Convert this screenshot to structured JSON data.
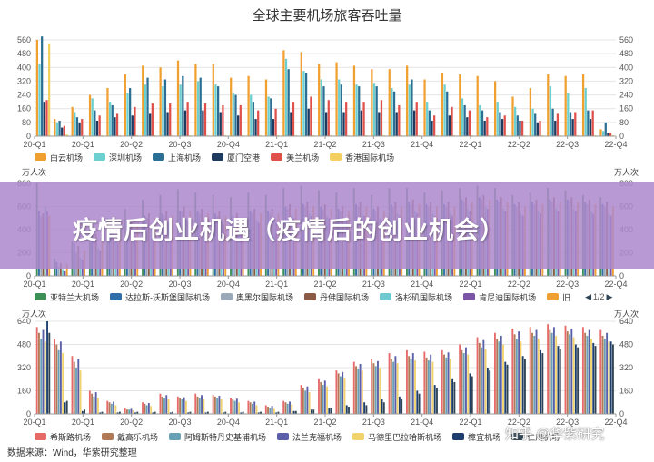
{
  "title": "全球主要机场旅客吞吐量",
  "banner": "疫情后创业机遇（疫情后的创业机会）",
  "source": "数据来源：Wind，华紫研究整理",
  "watermark": "知乎 @华紫研究",
  "pager": {
    "prev": "◀",
    "text": "1/2",
    "next": "▶"
  },
  "quarters": [
    "20-Q1",
    "20-Q2",
    "20-Q3",
    "20-Q4",
    "21-Q1",
    "21-Q2",
    "21-Q3",
    "21-Q4",
    "22-Q1",
    "22-Q2",
    "22-Q3",
    "22-Q4"
  ],
  "chart_data": [
    {
      "type": "bar",
      "name": "panel-1",
      "ylim": [
        0,
        560
      ],
      "yticks": [
        0,
        80,
        160,
        240,
        320,
        400,
        480,
        560
      ],
      "xticks": [
        "20-Q1",
        "20-Q1",
        "20-Q2",
        "20-Q3",
        "20-Q4",
        "21-Q1",
        "21-Q2",
        "21-Q3",
        "21-Q4",
        "22-Q1",
        "22-Q2",
        "22-Q3",
        "22-Q4"
      ],
      "groups": 33,
      "series": [
        {
          "name": "白云机场",
          "color": "#f0a030",
          "values": [
            560,
            100,
            170,
            240,
            280,
            360,
            410,
            400,
            440,
            420,
            420,
            340,
            350,
            330,
            500,
            490,
            420,
            430,
            410,
            390,
            390,
            410,
            330,
            370,
            360,
            350,
            320,
            230,
            280,
            360,
            350,
            360,
            40
          ]
        },
        {
          "name": "深圳机场",
          "color": "#6ccfd0",
          "values": [
            420,
            80,
            140,
            220,
            200,
            250,
            300,
            290,
            300,
            320,
            300,
            250,
            240,
            230,
            450,
            380,
            330,
            330,
            300,
            310,
            280,
            300,
            200,
            300,
            220,
            180,
            200,
            170,
            160,
            290,
            250,
            280,
            30
          ]
        },
        {
          "name": "上海机场",
          "color": "#2b6f94",
          "values": [
            580,
            90,
            110,
            150,
            180,
            280,
            340,
            330,
            350,
            340,
            290,
            240,
            200,
            220,
            390,
            370,
            290,
            300,
            290,
            290,
            260,
            330,
            150,
            260,
            180,
            150,
            140,
            120,
            130,
            160,
            140,
            150,
            80
          ]
        },
        {
          "name": "厦门空港",
          "color": "#1f3a5f",
          "values": [
            200,
            50,
            80,
            90,
            110,
            120,
            130,
            140,
            150,
            150,
            140,
            120,
            100,
            100,
            140,
            160,
            140,
            140,
            150,
            140,
            140,
            150,
            90,
            120,
            110,
            90,
            100,
            90,
            80,
            90,
            100,
            100,
            20
          ]
        },
        {
          "name": "美兰机场",
          "color": "#e0504a",
          "values": [
            210,
            60,
            100,
            120,
            130,
            170,
            190,
            190,
            200,
            190,
            180,
            180,
            150,
            160,
            200,
            230,
            210,
            200,
            200,
            210,
            180,
            200,
            120,
            170,
            150,
            110,
            120,
            90,
            90,
            130,
            140,
            150,
            20
          ]
        },
        {
          "name": "香港国际机场",
          "color": "#f2cf5e",
          "values": [
            540,
            10,
            5,
            5,
            5,
            5,
            5,
            5,
            5,
            5,
            5,
            5,
            5,
            5,
            5,
            5,
            5,
            5,
            5,
            5,
            5,
            5,
            5,
            5,
            5,
            5,
            5,
            5,
            5,
            5,
            5,
            5,
            5
          ]
        }
      ]
    },
    {
      "type": "bar",
      "name": "panel-2",
      "ylim": [
        0,
        800
      ],
      "yticks": [
        0,
        200,
        400,
        600,
        800
      ],
      "xticks": [
        "20-Q1",
        "20-Q1",
        "20-Q2",
        "20-Q3",
        "20-Q4",
        "21-Q1",
        "21-Q2",
        "21-Q3",
        "21-Q4",
        "22-Q1",
        "22-Q2",
        "22-Q3",
        "22-Q4"
      ],
      "unit": "万人次",
      "groups": 33,
      "series": [
        {
          "name": "亚特兰大机场",
          "color": "#3c8f56",
          "values": [
            800,
            150,
            300,
            420,
            500,
            580,
            660,
            700,
            750,
            720,
            700,
            680,
            720,
            700,
            760,
            780,
            740,
            720,
            760,
            700,
            760,
            760,
            720,
            740,
            760,
            780,
            760,
            700,
            720,
            760,
            740,
            700,
            680
          ]
        },
        {
          "name": "达拉斯-沃斯堡国际机场",
          "color": "#2f6ea8",
          "values": [
            560,
            120,
            280,
            380,
            420,
            480,
            520,
            540,
            560,
            560,
            540,
            520,
            560,
            560,
            600,
            620,
            600,
            580,
            620,
            580,
            620,
            640,
            620,
            620,
            660,
            680,
            660,
            620,
            640,
            660,
            660,
            640,
            620
          ]
        },
        {
          "name": "奥黑尔国际机场",
          "color": "#9aa8b8",
          "values": [
            520,
            80,
            200,
            300,
            360,
            420,
            500,
            520,
            560,
            540,
            520,
            500,
            540,
            540,
            580,
            600,
            580,
            560,
            600,
            560,
            600,
            620,
            600,
            600,
            640,
            660,
            640,
            600,
            620,
            640,
            640,
            620,
            600
          ]
        },
        {
          "name": "丹佛国际机场",
          "color": "#8a5a44",
          "values": [
            540,
            110,
            260,
            360,
            420,
            480,
            540,
            560,
            600,
            580,
            560,
            540,
            580,
            580,
            620,
            640,
            620,
            600,
            640,
            600,
            640,
            660,
            640,
            640,
            680,
            700,
            680,
            640,
            660,
            680,
            680,
            660,
            640
          ]
        },
        {
          "name": "洛杉矶国际机场",
          "color": "#6fcad0",
          "values": [
            600,
            60,
            160,
            240,
            300,
            360,
            420,
            460,
            500,
            480,
            460,
            440,
            480,
            480,
            520,
            540,
            520,
            500,
            540,
            500,
            540,
            560,
            540,
            540,
            580,
            600,
            580,
            540,
            560,
            580,
            580,
            560,
            540
          ]
        },
        {
          "name": "肯尼迪国际机场",
          "color": "#7b55a6",
          "values": [
            560,
            40,
            140,
            220,
            280,
            340,
            400,
            440,
            480,
            460,
            440,
            420,
            460,
            460,
            500,
            520,
            500,
            480,
            520,
            480,
            520,
            540,
            520,
            520,
            560,
            580,
            560,
            520,
            540,
            560,
            560,
            540,
            520
          ]
        },
        {
          "name": "旧",
          "color": "#f0a030",
          "values": [
            520,
            100,
            220,
            320,
            380,
            440,
            500,
            520,
            560,
            540,
            520,
            500,
            540,
            540,
            580,
            600,
            580,
            560,
            600,
            560,
            600,
            620,
            600,
            600,
            640,
            660,
            640,
            600,
            620,
            640,
            640,
            620,
            600
          ]
        }
      ]
    },
    {
      "type": "bar",
      "name": "panel-3",
      "ylim": [
        0,
        640
      ],
      "yticks": [
        0,
        160,
        320,
        480,
        640
      ],
      "xticks": [
        "20-Q1",
        "20-Q1",
        "20-Q2",
        "20-Q3",
        "20-Q4",
        "21-Q1",
        "21-Q2",
        "21-Q3",
        "21-Q4",
        "22-Q1",
        "22-Q2",
        "22-Q3",
        "22-Q4"
      ],
      "unit": "万人次",
      "groups": 33,
      "series": [
        {
          "name": "希斯路机场",
          "color": "#e66a6a",
          "values": [
            600,
            520,
            400,
            160,
            90,
            40,
            80,
            140,
            120,
            140,
            130,
            110,
            90,
            60,
            90,
            200,
            240,
            300,
            360,
            380,
            420,
            440,
            430,
            440,
            480,
            530,
            560,
            590,
            600,
            620,
            610,
            600,
            580
          ]
        },
        {
          "name": "戴高乐机场",
          "color": "#b07a58",
          "values": [
            560,
            480,
            360,
            140,
            80,
            30,
            70,
            120,
            110,
            120,
            120,
            100,
            80,
            50,
            80,
            180,
            220,
            280,
            330,
            350,
            380,
            400,
            390,
            410,
            440,
            490,
            520,
            550,
            560,
            580,
            570,
            560,
            540
          ]
        },
        {
          "name": "阿姆斯特丹史基浦机场",
          "color": "#6aa0b6",
          "values": [
            520,
            440,
            320,
            120,
            70,
            30,
            60,
            110,
            100,
            110,
            110,
            90,
            70,
            40,
            70,
            160,
            200,
            260,
            310,
            330,
            360,
            380,
            370,
            390,
            420,
            460,
            500,
            520,
            540,
            560,
            550,
            540,
            520
          ]
        },
        {
          "name": "法兰克福机场",
          "color": "#5a5fa8",
          "values": [
            580,
            500,
            380,
            150,
            85,
            35,
            75,
            130,
            115,
            130,
            125,
            105,
            85,
            55,
            85,
            190,
            230,
            290,
            345,
            365,
            400,
            420,
            410,
            425,
            460,
            510,
            540,
            570,
            580,
            600,
            590,
            580,
            560
          ]
        },
        {
          "name": "马德里巴拉哈斯机场",
          "color": "#f1d36e",
          "values": [
            500,
            420,
            300,
            110,
            60,
            25,
            55,
            100,
            90,
            100,
            100,
            80,
            60,
            35,
            65,
            150,
            190,
            250,
            300,
            320,
            350,
            370,
            360,
            380,
            410,
            450,
            480,
            500,
            520,
            540,
            530,
            520,
            500
          ]
        },
        {
          "name": "樟宜机场",
          "color": "#1e3f6e",
          "values": [
            640,
            80,
            20,
            10,
            10,
            10,
            10,
            10,
            10,
            10,
            10,
            10,
            10,
            10,
            20,
            30,
            40,
            60,
            80,
            100,
            120,
            160,
            200,
            240,
            280,
            320,
            360,
            400,
            440,
            470,
            480,
            490,
            500
          ]
        },
        {
          "name": "仁川机场",
          "color": "#2f4554",
          "values": [
            560,
            90,
            30,
            15,
            15,
            15,
            15,
            15,
            15,
            15,
            15,
            15,
            15,
            15,
            20,
            30,
            40,
            50,
            60,
            80,
            100,
            140,
            180,
            220,
            260,
            300,
            340,
            380,
            420,
            450,
            460,
            470,
            480
          ]
        }
      ]
    }
  ],
  "legends": {
    "panel1": [
      "白云机场",
      "深圳机场",
      "上海机场",
      "厦门空港",
      "美兰机场",
      "香港国际机场"
    ],
    "panel2": [
      "亚特兰大机场",
      "达拉斯-沃斯堡国际机场",
      "奥黑尔国际机场",
      "丹佛国际机场",
      "洛杉矶国际机场",
      "肯尼迪国际机场",
      "旧"
    ],
    "panel3": [
      "希斯路机场",
      "戴高乐机场",
      "阿姆斯特丹史基浦机场",
      "法兰克福机场",
      "马德里巴拉哈斯机场",
      "樟宜机场",
      "仁川机场"
    ]
  },
  "units": {
    "left": "万人次",
    "right": "万人次"
  }
}
